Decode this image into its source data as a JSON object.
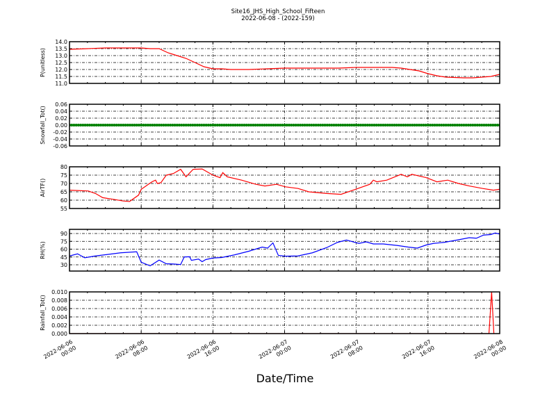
{
  "chart_data": {
    "type": "line",
    "title": "Site16_JHS_High_School_Fifteen",
    "subtitle": "2022-06-08 - (2022-159)",
    "xlabel": "Date/Time",
    "xlim_hours": [
      0,
      48
    ],
    "x_ticks": [
      {
        "h": 0,
        "l1": "2022-06-06",
        "l2": "00:00"
      },
      {
        "h": 8,
        "l1": "2022-06-06",
        "l2": "08:00"
      },
      {
        "h": 16,
        "l1": "2022-06-06",
        "l2": "16:00"
      },
      {
        "h": 24,
        "l1": "2022-06-07",
        "l2": "00:00"
      },
      {
        "h": 32,
        "l1": "2022-06-07",
        "l2": "08:00"
      },
      {
        "h": 40,
        "l1": "2022-06-07",
        "l2": "16:00"
      },
      {
        "h": 48,
        "l1": "2022-06-08",
        "l2": "00:00"
      }
    ],
    "grid": true,
    "panels": [
      {
        "ylabel": "P(unitless)",
        "color": "#ff0000",
        "ylim": [
          11,
          14
        ],
        "yticks": [
          "11.0",
          "11.5",
          "12.0",
          "12.5",
          "13.0",
          "13.5",
          "14.0"
        ],
        "x": [
          0,
          2,
          4,
          6,
          8,
          9,
          10,
          11,
          12,
          13,
          14,
          15,
          16,
          17,
          18,
          20,
          22,
          24,
          28,
          30,
          32,
          34,
          36,
          37,
          38,
          39,
          40,
          41,
          42,
          44,
          45,
          46,
          47,
          48
        ],
        "y": [
          13.45,
          13.5,
          13.55,
          13.55,
          13.55,
          13.5,
          13.5,
          13.2,
          13.0,
          12.8,
          12.5,
          12.2,
          12.05,
          12.05,
          12.0,
          12.0,
          12.05,
          12.1,
          12.1,
          12.1,
          12.15,
          12.15,
          12.15,
          12.1,
          12.0,
          11.9,
          11.7,
          11.55,
          11.45,
          11.4,
          11.4,
          11.45,
          11.5,
          11.65
        ]
      },
      {
        "ylabel": "Snowfall_Tot()",
        "color": "#008000",
        "markers": true,
        "ylim": [
          -0.06,
          0.06
        ],
        "yticks": [
          "-0.06",
          "-0.04",
          "-0.02",
          "0.00",
          "0.02",
          "0.04",
          "0.06"
        ],
        "x": [
          0,
          48
        ],
        "y": [
          0,
          0
        ],
        "constant": 0
      },
      {
        "ylabel": "AirTF()",
        "color": "#ff0000",
        "ylim": [
          55,
          80
        ],
        "yticks": [
          "55",
          "60",
          "65",
          "70",
          "75",
          "80"
        ],
        "x": [
          0,
          2.1,
          2.9,
          3.7,
          4.9,
          6,
          6.7,
          7.7,
          8,
          9.2,
          9.6,
          9.8,
          10.2,
          10.8,
          11.6,
          12.4,
          13,
          13.8,
          14.8,
          16,
          16.8,
          17.1,
          17.6,
          19.2,
          20.8,
          21.8,
          23.1,
          24.1,
          25.5,
          26.7,
          28.7,
          30.3,
          31.9,
          33.5,
          33.9,
          34.3,
          35.4,
          37,
          37.7,
          38.2,
          39.8,
          41,
          42.2,
          43.4,
          44.6,
          46.1,
          47.3,
          48
        ],
        "y": [
          66,
          65.5,
          64,
          61.5,
          60.5,
          59.5,
          59.2,
          63,
          66.5,
          71,
          72,
          70,
          70.5,
          75,
          76,
          78.5,
          74,
          78.5,
          78.7,
          75,
          73.5,
          76.5,
          74,
          72,
          69.5,
          68.5,
          69.5,
          68,
          67,
          65,
          64,
          63.5,
          66.5,
          69.5,
          72,
          71,
          72,
          75.5,
          74,
          75.5,
          73.5,
          71,
          72,
          70,
          68.5,
          67,
          66,
          66.5
        ]
      },
      {
        "ylabel": "RH(%)",
        "color": "#0000ff",
        "ylim": [
          18,
          98
        ],
        "yticks": [
          "30",
          "45",
          "60",
          "75",
          "90"
        ],
        "x": [
          0,
          0.9,
          1.7,
          2.9,
          4.1,
          5.7,
          7.5,
          8,
          9,
          10,
          10.8,
          11.6,
          12.4,
          12.8,
          13.4,
          13.6,
          14.4,
          14.8,
          15.2,
          16,
          17,
          18.4,
          20,
          21.5,
          22.1,
          22.7,
          23.3,
          24.1,
          25.5,
          27.1,
          28.7,
          29.9,
          30.9,
          32.3,
          33.1,
          33.9,
          35,
          36.6,
          37.8,
          38.8,
          39.8,
          40.6,
          41.8,
          43.4,
          44.6,
          45.4,
          46.2,
          47,
          47.5,
          48
        ],
        "y": [
          47,
          51,
          43.5,
          47,
          49.5,
          53,
          55,
          35,
          28,
          39,
          32,
          31.5,
          30.5,
          45,
          45.5,
          38.5,
          41,
          36,
          40,
          43,
          44,
          49,
          56,
          64,
          62,
          72,
          48,
          46.5,
          47,
          53,
          63,
          73,
          77.5,
          71,
          74,
          70,
          70,
          67,
          64,
          62,
          68,
          71,
          73,
          78,
          82,
          81,
          87,
          88,
          91,
          89
        ]
      },
      {
        "ylabel": "Rainfall_Tot()",
        "color": "#ff0000",
        "ylim": [
          0,
          0.01
        ],
        "yticks": [
          "0.000",
          "0.002",
          "0.004",
          "0.006",
          "0.008",
          "0.010"
        ],
        "x": [
          0,
          46.8,
          47.1,
          47.4,
          48
        ],
        "y": [
          0,
          0,
          0.01,
          -0.002,
          0
        ]
      }
    ]
  }
}
